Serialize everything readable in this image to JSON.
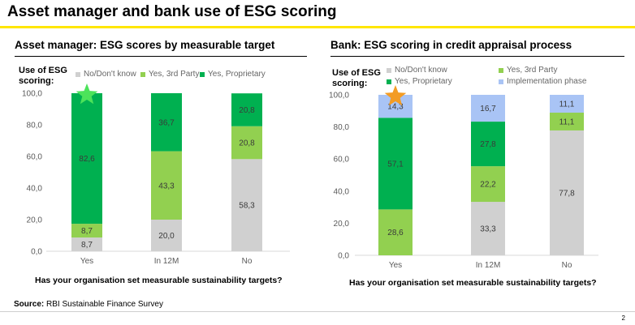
{
  "slide": {
    "title": "Asset manager and bank use of ESG scoring",
    "source_label": "Source:",
    "source_text": "RBI Sustainable Finance Survey",
    "page_number": "2",
    "accent_color": "#ffe600"
  },
  "panels": [
    {
      "title": "Asset manager: ESG scores by measurable target",
      "scoring_label": "Use of ESG scoring:",
      "question": "Has your organisation set measurable sustainability targets?",
      "star_color": "#4ce35a",
      "star_category_index": 0
    },
    {
      "title": "Bank: ESG scoring in credit appraisal process",
      "scoring_label": "Use of ESG scoring:",
      "question": "Has your organisation set measurable sustainability targets?",
      "star_color": "#f39c24",
      "star_category_index": 0
    }
  ],
  "chart_data": [
    {
      "type": "bar",
      "stacked": true,
      "categories": [
        "Yes",
        "In 12M",
        "No"
      ],
      "ylim": [
        0,
        100
      ],
      "yticks": [
        "0,0",
        "20,0",
        "40,0",
        "60,0",
        "80,0",
        "100,0"
      ],
      "series": [
        {
          "name": "No/Don't know",
          "color": "#d0d0d0",
          "values": [
            8.7,
            20.0,
            58.3
          ],
          "labels": [
            "8,7",
            "20,0",
            "58,3"
          ]
        },
        {
          "name": "Yes, 3rd Party",
          "color": "#92d050",
          "values": [
            8.7,
            43.3,
            20.8
          ],
          "labels": [
            "8,7",
            "43,3",
            "20,8"
          ]
        },
        {
          "name": "Yes, Proprietary",
          "color": "#00b050",
          "values": [
            82.6,
            36.7,
            20.8
          ],
          "labels": [
            "82,6",
            "36,7",
            "20,8"
          ]
        }
      ],
      "xlabel": "Has your organisation set measurable sustainability targets?",
      "ylabel": "Use of ESG scoring:",
      "grid": false
    },
    {
      "type": "bar",
      "stacked": true,
      "categories": [
        "Yes",
        "In 12M",
        "No"
      ],
      "ylim": [
        0,
        100
      ],
      "yticks": [
        "0,0",
        "20,0",
        "40,0",
        "60,0",
        "80,0",
        "100,0"
      ],
      "series": [
        {
          "name": "No/Don't know",
          "color": "#d0d0d0",
          "values": [
            0,
            33.3,
            77.8
          ],
          "labels": [
            "",
            "33,3",
            "77,8"
          ]
        },
        {
          "name": "Yes, 3rd Party",
          "color": "#92d050",
          "values": [
            28.6,
            22.2,
            11.1
          ],
          "labels": [
            "28,6",
            "22,2",
            "11,1"
          ]
        },
        {
          "name": "Yes, Proprietary",
          "color": "#00b050",
          "values": [
            57.1,
            27.8,
            0
          ],
          "labels": [
            "57,1",
            "27,8",
            ""
          ]
        },
        {
          "name": "Implementation phase",
          "color": "#a9c4f5",
          "values": [
            14.3,
            16.7,
            11.1
          ],
          "labels": [
            "14,3",
            "16,7",
            "11,1"
          ]
        }
      ],
      "xlabel": "Has your organisation set measurable sustainability targets?",
      "ylabel": "Use of ESG scoring:",
      "grid": false
    }
  ]
}
